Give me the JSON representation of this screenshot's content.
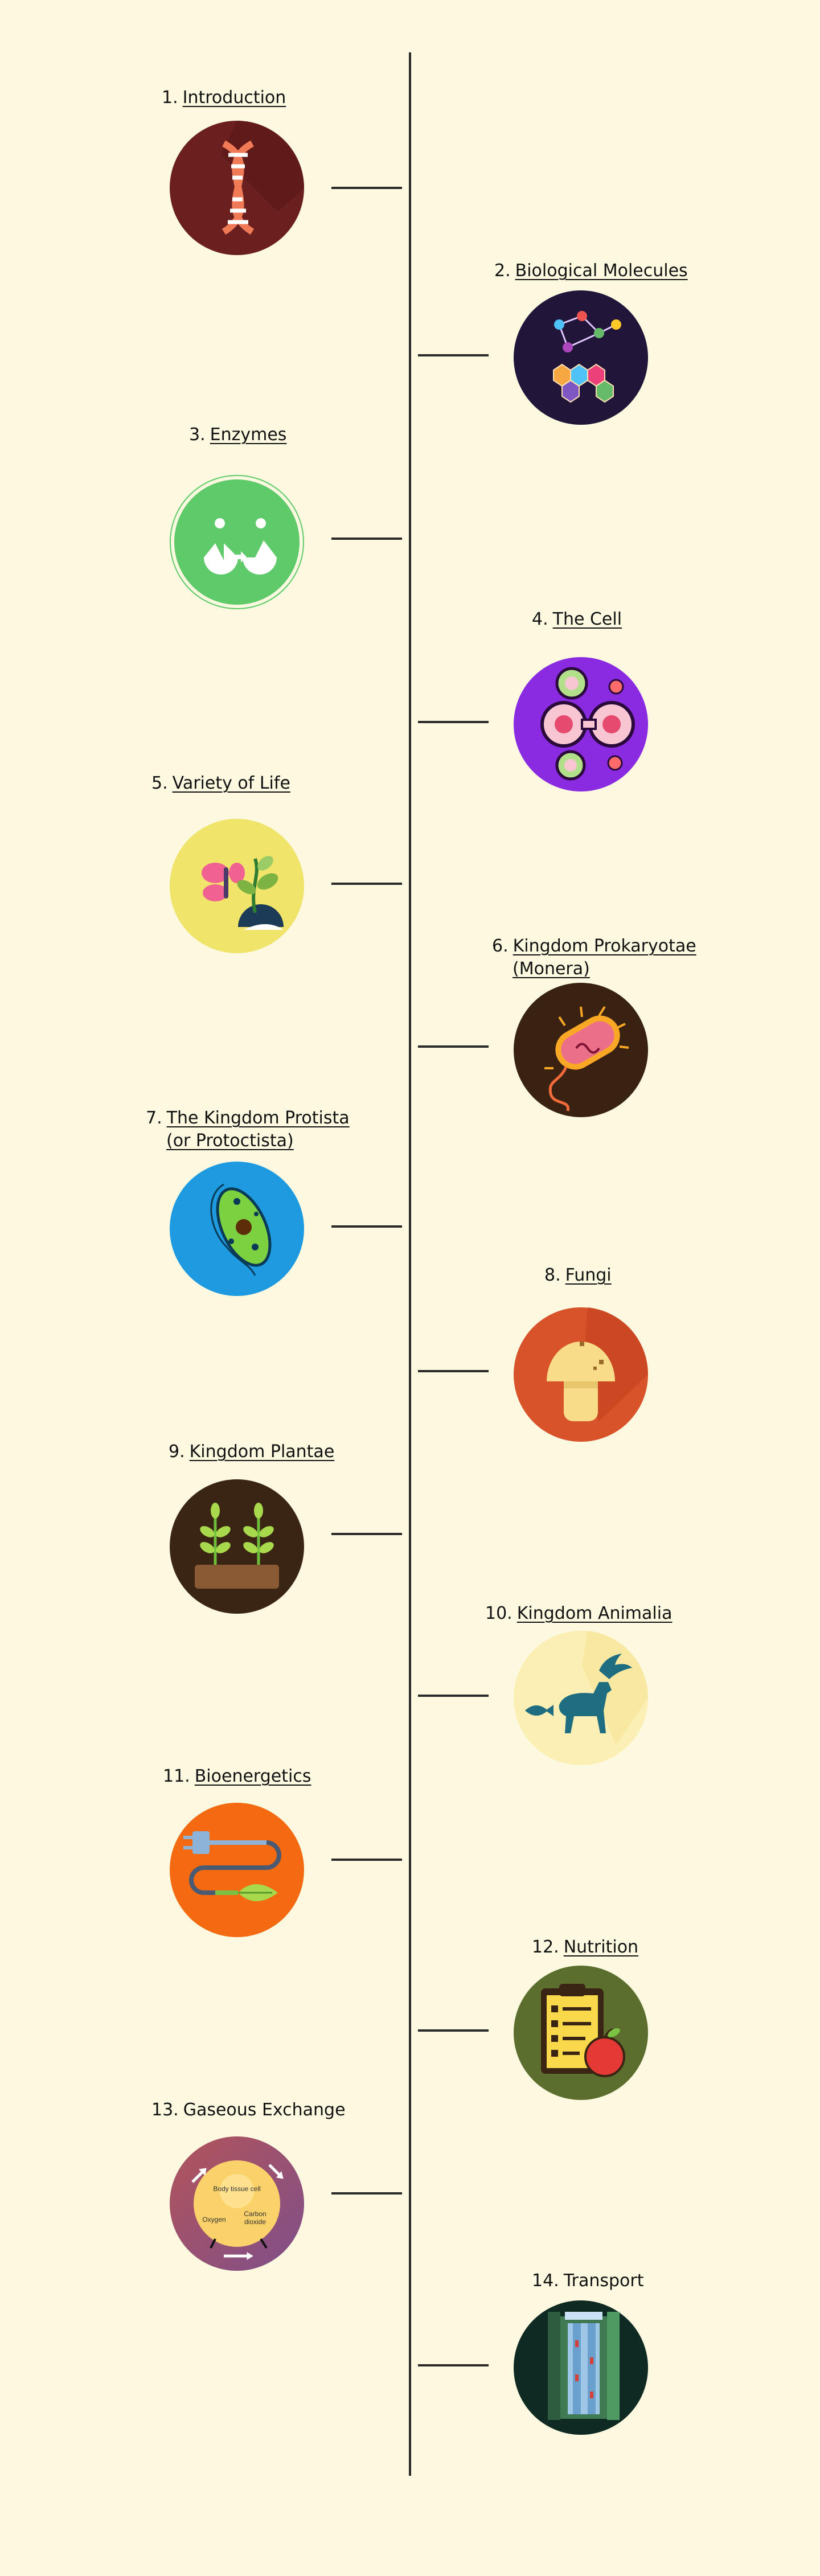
{
  "topics": [
    {
      "number": "1.",
      "title": "Introduction",
      "linked": true,
      "icon": "dna-icon",
      "bg": "#6b1f1f"
    },
    {
      "number": "2.",
      "title": "Biological Molecules",
      "linked": true,
      "icon": "molecules-icon",
      "bg": "#22153a"
    },
    {
      "number": "3.",
      "title": "Enzymes",
      "linked": true,
      "icon": "enzyme-icon",
      "bg": "#5fca69"
    },
    {
      "number": "4.",
      "title": "The Cell",
      "linked": true,
      "icon": "cell-icon",
      "bg": "#8a2be2"
    },
    {
      "number": "5.",
      "title": "Variety of Life",
      "linked": true,
      "icon": "butterfly-plant-icon",
      "bg": "#f0e46a"
    },
    {
      "number": "6.",
      "title_lines": [
        "Kingdom Prokaryotae",
        "(Monera)"
      ],
      "linked": true,
      "icon": "bacterium-icon",
      "bg": "#3a2212"
    },
    {
      "number": "7.",
      "title_lines": [
        "The Kingdom Protista",
        "(or Protoctista)"
      ],
      "linked": true,
      "icon": "protist-icon",
      "bg": "#1e9ae0"
    },
    {
      "number": "8.",
      "title": "Fungi",
      "linked": true,
      "icon": "mushroom-icon",
      "bg": "#d9532a"
    },
    {
      "number": "9.",
      "title": "Kingdom Plantae",
      "linked": true,
      "icon": "plant-sprouts-icon",
      "bg": "#3a2414"
    },
    {
      "number": "10.",
      "title": "Kingdom Animalia",
      "linked": true,
      "icon": "animals-icon",
      "bg": "#fbefb4"
    },
    {
      "number": "11.",
      "title": "Bioenergetics",
      "linked": true,
      "icon": "energy-plug-icon",
      "bg": "#f36a10"
    },
    {
      "number": "12.",
      "title": "Nutrition",
      "linked": true,
      "icon": "nutrition-clipboard-icon",
      "bg": "#5b6e2e"
    },
    {
      "number": "13.",
      "title": "Gaseous Exchange",
      "linked": false,
      "icon": "gas-exchange-icon",
      "bg": "#9b4f6a",
      "icon_labels": {
        "center": "Body tissue cell",
        "left": "Oxygen",
        "right_top": "Carbon",
        "right_bottom": "dioxide"
      }
    },
    {
      "number": "14.",
      "title": "Transport",
      "linked": false,
      "icon": "xylem-icon",
      "bg": "#0f2a22"
    }
  ]
}
